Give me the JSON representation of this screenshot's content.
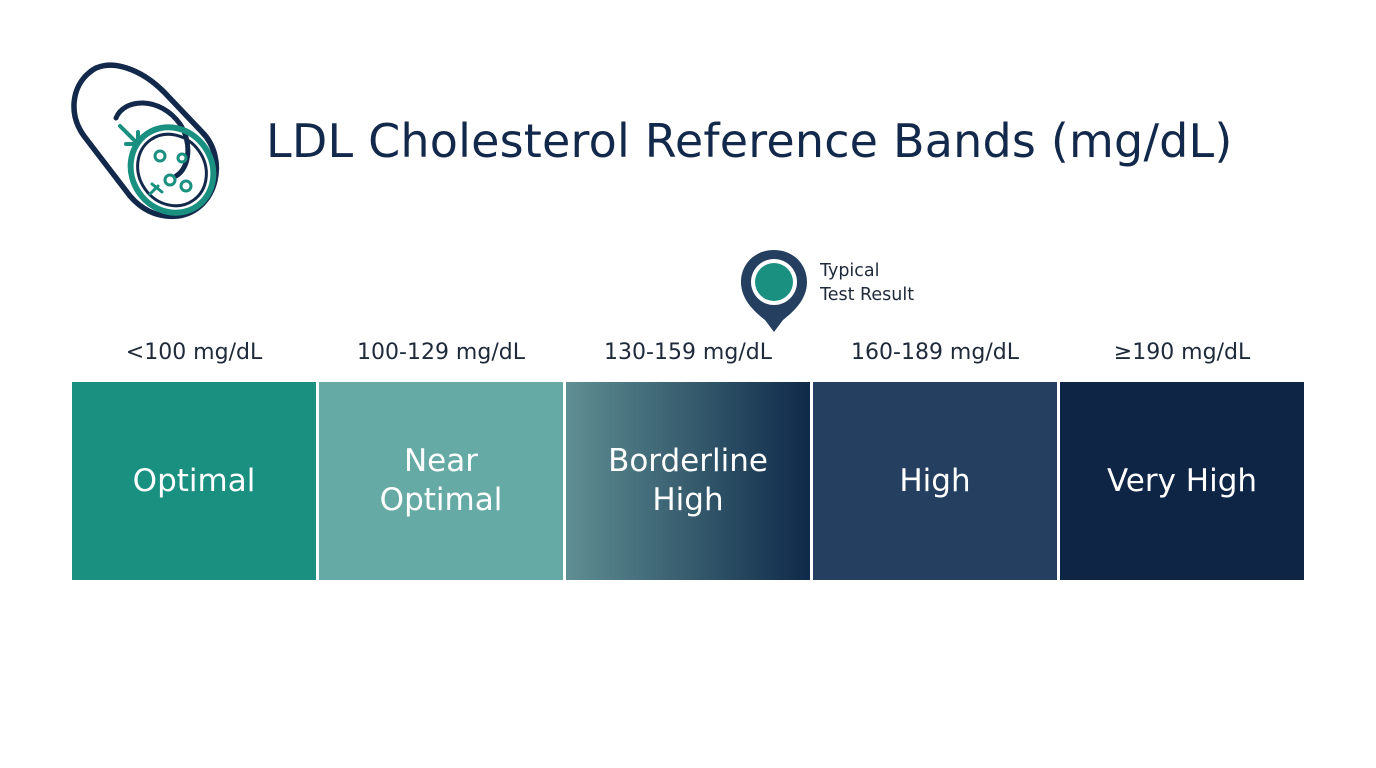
{
  "title": "LDL Cholesterol Reference Bands (mg/dL)",
  "logo": {
    "icon": "cholesterol-vessel-icon"
  },
  "marker": {
    "icon": "map-pin-icon",
    "label_line1": "Typical",
    "label_line2": "Test Result",
    "band_index": 2,
    "position_within_band": 0.85
  },
  "bands": [
    {
      "range": "<100 mg/dL",
      "label_line1": "Optimal",
      "label_line2": "",
      "color": "#1a9080"
    },
    {
      "range": "100-129 mg/dL",
      "label_line1": "Near",
      "label_line2": "Optimal",
      "color": "#66aaa6"
    },
    {
      "range": "130-159 mg/dL",
      "label_line1": "Borderline",
      "label_line2": "High",
      "color_start": "#5f8f93",
      "color_end": "#0f2a4a"
    },
    {
      "range": "160-189 mg/dL",
      "label_line1": "High",
      "label_line2": "",
      "color": "#253f60"
    },
    {
      "range": "≥190 mg/dL",
      "label_line1": "Very High",
      "label_line2": "",
      "color": "#0e2546"
    }
  ]
}
